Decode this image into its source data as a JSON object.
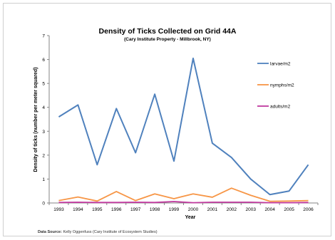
{
  "chart_data": {
    "type": "line",
    "title": "Density of Ticks Collected on Grid 44A",
    "subtitle": "(Cary Institute Property - Millbrook, NY)",
    "xlabel": "Year",
    "ylabel": "Density of ticks (number per meter squared)",
    "ylim": [
      0,
      7
    ],
    "yticks": [
      "0",
      "1",
      "2",
      "3",
      "4",
      "5",
      "6",
      "7"
    ],
    "categories": [
      "1993",
      "1994",
      "1995",
      "1996",
      "1997",
      "1998",
      "1999",
      "2000",
      "2001",
      "2002",
      "2003",
      "2004",
      "2005",
      "2006"
    ],
    "grid": false,
    "legend_position": "right",
    "series": [
      {
        "name": "larvae/m2",
        "color": "#4f81bd",
        "values": [
          3.6,
          4.1,
          1.6,
          3.95,
          2.1,
          4.55,
          1.75,
          6.05,
          2.5,
          1.9,
          1.0,
          0.35,
          0.5,
          1.6
        ]
      },
      {
        "name": "nymphs/m2",
        "color": "#f79646",
        "values": [
          0.1,
          0.25,
          0.08,
          0.48,
          0.1,
          0.38,
          0.18,
          0.38,
          0.24,
          0.62,
          0.32,
          0.07,
          0.08,
          0.1
        ]
      },
      {
        "name": "adults/m2",
        "color": "#c0399e",
        "values": [
          0.02,
          0.03,
          0.02,
          0.02,
          0.03,
          0.02,
          0.06,
          0.01,
          0.03,
          0.03,
          0.03,
          0.01,
          0.01,
          0.02
        ]
      }
    ]
  },
  "source": {
    "label": "Data Source:",
    "text": "Kelly Oggenfuss (Cary Institute of Ecosystem Studies)"
  }
}
